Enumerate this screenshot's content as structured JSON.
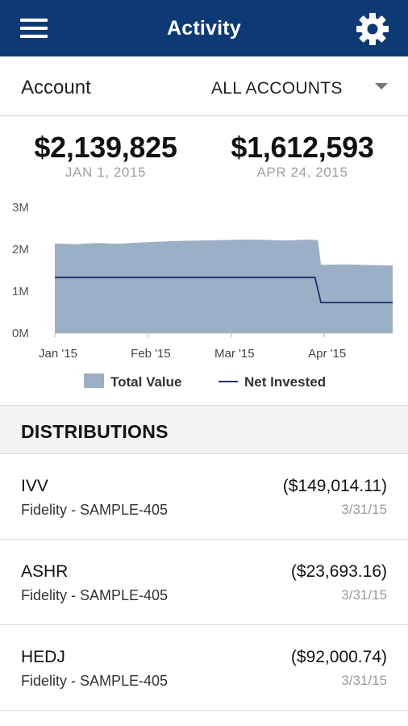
{
  "header": {
    "title": "Activity",
    "menu_icon": "hamburger-menu-icon",
    "settings_icon": "gear-icon",
    "background": "#0d3a75"
  },
  "account_filter": {
    "label": "Account",
    "selected": "ALL ACCOUNTS"
  },
  "summary": {
    "start": {
      "value": "$2,139,825",
      "date": "JAN 1, 2015"
    },
    "end": {
      "value": "$1,612,593",
      "date": "APR 24, 2015"
    }
  },
  "chart_data": {
    "type": "area",
    "x_ticks": [
      "Jan '15",
      "Feb '15",
      "Mar '15",
      "Apr '15"
    ],
    "y_ticks": [
      "0M",
      "1M",
      "2M",
      "3M"
    ],
    "ylim": [
      0,
      3000000
    ],
    "xlim": [
      "2015-01-01",
      "2015-04-24"
    ],
    "series": [
      {
        "name": "Total Value",
        "kind": "area",
        "color": "#9bafc6",
        "points": [
          [
            "2015-01-01",
            2140000
          ],
          [
            "2015-01-08",
            2120000
          ],
          [
            "2015-01-15",
            2150000
          ],
          [
            "2015-01-22",
            2130000
          ],
          [
            "2015-01-29",
            2160000
          ],
          [
            "2015-02-05",
            2180000
          ],
          [
            "2015-02-12",
            2200000
          ],
          [
            "2015-02-19",
            2210000
          ],
          [
            "2015-02-26",
            2220000
          ],
          [
            "2015-03-05",
            2230000
          ],
          [
            "2015-03-12",
            2225000
          ],
          [
            "2015-03-19",
            2210000
          ],
          [
            "2015-03-26",
            2230000
          ],
          [
            "2015-03-30",
            2220000
          ],
          [
            "2015-03-31",
            1630000
          ],
          [
            "2015-04-08",
            1640000
          ],
          [
            "2015-04-16",
            1625000
          ],
          [
            "2015-04-24",
            1612593
          ]
        ]
      },
      {
        "name": "Net Invested",
        "kind": "line",
        "color": "#1b2f6e",
        "points": [
          [
            "2015-01-01",
            1330000
          ],
          [
            "2015-03-29",
            1330000
          ],
          [
            "2015-03-31",
            730000
          ],
          [
            "2015-04-24",
            730000
          ]
        ]
      }
    ],
    "legend": [
      "Total Value",
      "Net Invested"
    ],
    "legend_position": "bottom",
    "grid": false
  },
  "distributions": {
    "title": "DISTRIBUTIONS",
    "items": [
      {
        "symbol": "IVV",
        "account": "Fidelity - SAMPLE-405",
        "amount": "($149,014.11)",
        "date": "3/31/15"
      },
      {
        "symbol": "ASHR",
        "account": "Fidelity - SAMPLE-405",
        "amount": "($23,693.16)",
        "date": "3/31/15"
      },
      {
        "symbol": "HEDJ",
        "account": "Fidelity - SAMPLE-405",
        "amount": "($92,000.74)",
        "date": "3/31/15"
      }
    ]
  }
}
